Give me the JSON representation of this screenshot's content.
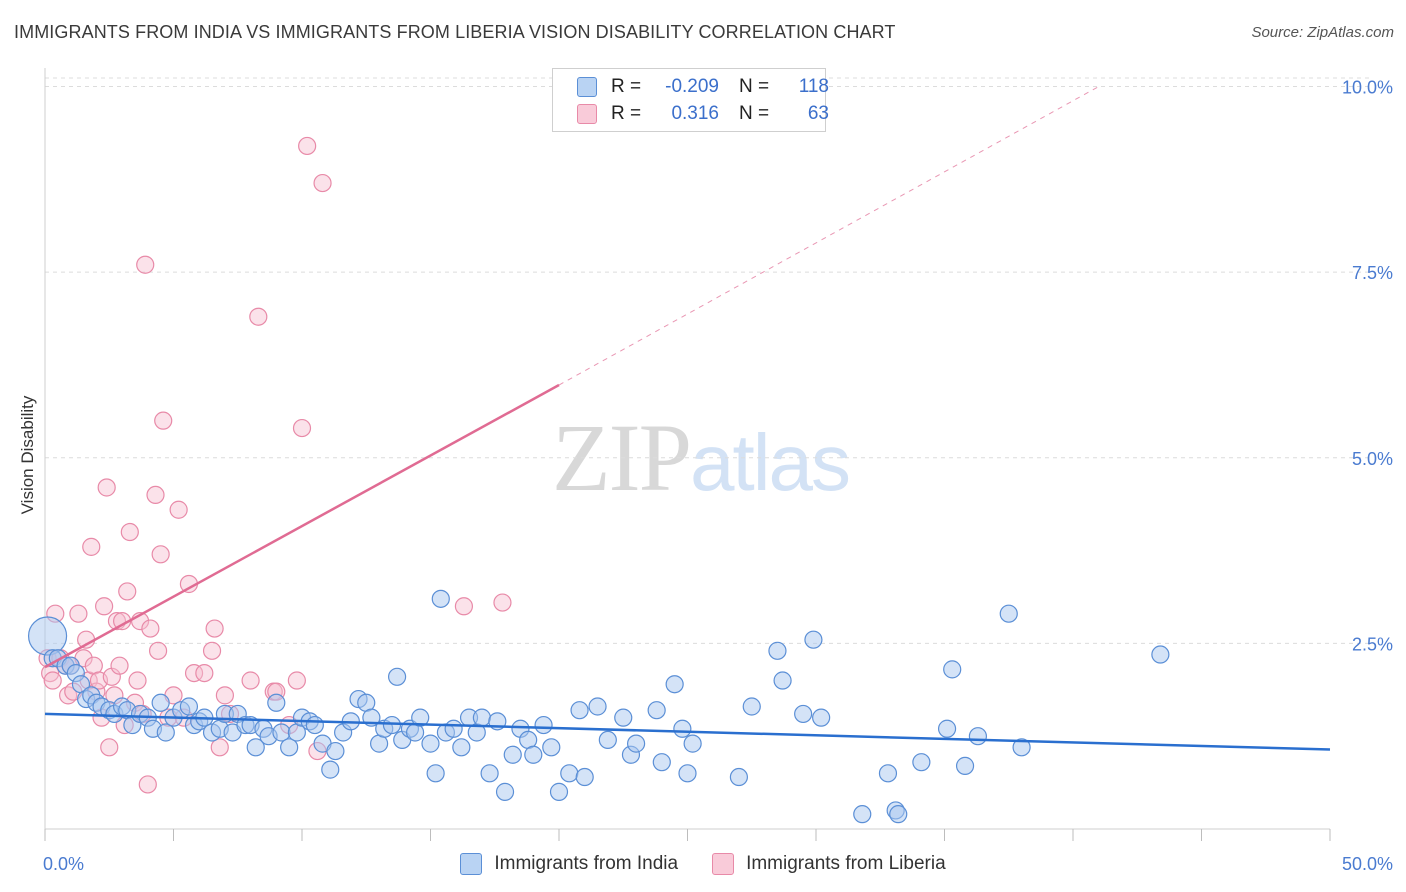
{
  "title": "IMMIGRANTS FROM INDIA VS IMMIGRANTS FROM LIBERIA VISION DISABILITY CORRELATION CHART",
  "source": "Source: ZipAtlas.com",
  "watermark": {
    "zip": "ZIP",
    "atlas": "atlas"
  },
  "legend": {
    "india": {
      "r_label": "R =",
      "r_value": "-0.209",
      "n_label": "N =",
      "n_value": "118"
    },
    "liberia": {
      "r_label": "R =",
      "r_value": "0.316",
      "n_label": "N =",
      "n_value": "63"
    }
  },
  "colors": {
    "india_fill": "#a9c8f0",
    "india_stroke": "#5b8fd6",
    "india_line": "#2a6fcf",
    "liberia_fill": "#f7bfd0",
    "liberia_stroke": "#e88aa8",
    "liberia_line": "#e06b93",
    "tick_label": "#4a7bd0",
    "grid": "#dcdcdc"
  },
  "chart_data": {
    "type": "scatter",
    "title": "IMMIGRANTS FROM INDIA VS IMMIGRANTS FROM LIBERIA VISION DISABILITY CORRELATION CHART",
    "xlabel": "",
    "ylabel": "Vision Disability",
    "xlim": [
      0,
      50
    ],
    "ylim": [
      0,
      10.25
    ],
    "x_tick_labels": [
      "0.0%",
      "50.0%"
    ],
    "y_ticks": [
      2.5,
      5.0,
      7.5,
      10.0
    ],
    "y_tick_labels": [
      "2.5%",
      "5.0%",
      "7.5%",
      "10.0%"
    ],
    "grid": true,
    "legend_position": "top-center",
    "series": [
      {
        "name": "Immigrants from India",
        "trend": {
          "x0": 0,
          "y0": 1.55,
          "x1": 50,
          "y1": 1.07
        },
        "points": [
          [
            0.1,
            2.6
          ],
          [
            0.3,
            2.3
          ],
          [
            0.5,
            2.3
          ],
          [
            0.8,
            2.2
          ],
          [
            1.0,
            2.2
          ],
          [
            1.2,
            2.1
          ],
          [
            1.4,
            1.95
          ],
          [
            1.6,
            1.75
          ],
          [
            1.8,
            1.8
          ],
          [
            2.0,
            1.7
          ],
          [
            2.2,
            1.65
          ],
          [
            2.5,
            1.6
          ],
          [
            2.7,
            1.55
          ],
          [
            3.0,
            1.65
          ],
          [
            3.2,
            1.6
          ],
          [
            3.4,
            1.4
          ],
          [
            3.7,
            1.55
          ],
          [
            4.0,
            1.5
          ],
          [
            4.2,
            1.35
          ],
          [
            4.5,
            1.7
          ],
          [
            4.7,
            1.3
          ],
          [
            5.0,
            1.5
          ],
          [
            5.3,
            1.6
          ],
          [
            5.6,
            1.65
          ],
          [
            5.8,
            1.4
          ],
          [
            6.0,
            1.45
          ],
          [
            6.2,
            1.5
          ],
          [
            6.5,
            1.3
          ],
          [
            6.8,
            1.35
          ],
          [
            7.0,
            1.55
          ],
          [
            7.3,
            1.3
          ],
          [
            7.5,
            1.55
          ],
          [
            7.8,
            1.4
          ],
          [
            8.0,
            1.4
          ],
          [
            8.2,
            1.1
          ],
          [
            8.5,
            1.35
          ],
          [
            8.7,
            1.25
          ],
          [
            9.0,
            1.7
          ],
          [
            9.2,
            1.3
          ],
          [
            9.5,
            1.1
          ],
          [
            9.8,
            1.3
          ],
          [
            10.0,
            1.5
          ],
          [
            10.3,
            1.45
          ],
          [
            10.5,
            1.4
          ],
          [
            10.8,
            1.15
          ],
          [
            11.1,
            0.8
          ],
          [
            11.3,
            1.05
          ],
          [
            11.6,
            1.3
          ],
          [
            11.9,
            1.45
          ],
          [
            12.2,
            1.75
          ],
          [
            12.5,
            1.7
          ],
          [
            12.7,
            1.5
          ],
          [
            13.0,
            1.15
          ],
          [
            13.2,
            1.35
          ],
          [
            13.5,
            1.4
          ],
          [
            13.7,
            2.05
          ],
          [
            13.9,
            1.2
          ],
          [
            14.2,
            1.35
          ],
          [
            14.4,
            1.3
          ],
          [
            14.6,
            1.5
          ],
          [
            15.0,
            1.15
          ],
          [
            15.2,
            0.75
          ],
          [
            15.4,
            3.1
          ],
          [
            15.6,
            1.3
          ],
          [
            15.9,
            1.35
          ],
          [
            16.2,
            1.1
          ],
          [
            16.5,
            1.5
          ],
          [
            16.8,
            1.3
          ],
          [
            17.0,
            1.5
          ],
          [
            17.3,
            0.75
          ],
          [
            17.6,
            1.45
          ],
          [
            17.9,
            0.5
          ],
          [
            18.2,
            1.0
          ],
          [
            18.5,
            1.35
          ],
          [
            18.8,
            1.2
          ],
          [
            19.0,
            1.0
          ],
          [
            19.4,
            1.4
          ],
          [
            19.7,
            1.1
          ],
          [
            20.0,
            0.5
          ],
          [
            20.4,
            0.75
          ],
          [
            20.8,
            1.6
          ],
          [
            21.0,
            0.7
          ],
          [
            21.5,
            1.65
          ],
          [
            21.9,
            1.2
          ],
          [
            22.5,
            1.5
          ],
          [
            22.8,
            1.0
          ],
          [
            23.0,
            1.15
          ],
          [
            23.8,
            1.6
          ],
          [
            24.0,
            0.9
          ],
          [
            24.5,
            1.95
          ],
          [
            24.8,
            1.35
          ],
          [
            25.0,
            0.75
          ],
          [
            25.2,
            1.15
          ],
          [
            27.0,
            0.7
          ],
          [
            27.5,
            1.65
          ],
          [
            28.5,
            2.4
          ],
          [
            28.7,
            2.0
          ],
          [
            29.5,
            1.55
          ],
          [
            29.9,
            2.55
          ],
          [
            30.2,
            1.5
          ],
          [
            31.8,
            0.2
          ],
          [
            32.8,
            0.75
          ],
          [
            33.1,
            0.25
          ],
          [
            33.2,
            0.2
          ],
          [
            34.1,
            0.9
          ],
          [
            35.1,
            1.35
          ],
          [
            35.3,
            2.15
          ],
          [
            35.8,
            0.85
          ],
          [
            36.3,
            1.25
          ],
          [
            37.5,
            2.9
          ],
          [
            38.0,
            1.1
          ],
          [
            43.4,
            2.35
          ]
        ]
      },
      {
        "name": "Immigrants from Liberia",
        "trend": {
          "x0": 0,
          "y0": 2.18,
          "x1": 20.0,
          "y1": 5.98,
          "dash_to": {
            "x": 41.0,
            "y": 10.0
          }
        },
        "points": [
          [
            0.1,
            2.3
          ],
          [
            0.2,
            2.1
          ],
          [
            0.3,
            2.0
          ],
          [
            0.4,
            2.9
          ],
          [
            0.6,
            2.3
          ],
          [
            0.8,
            2.2
          ],
          [
            0.9,
            1.8
          ],
          [
            1.0,
            2.2
          ],
          [
            1.1,
            1.85
          ],
          [
            1.3,
            2.9
          ],
          [
            1.5,
            2.3
          ],
          [
            1.6,
            2.55
          ],
          [
            1.7,
            2.0
          ],
          [
            1.8,
            3.8
          ],
          [
            1.9,
            2.2
          ],
          [
            2.0,
            1.85
          ],
          [
            2.1,
            2.0
          ],
          [
            2.2,
            1.5
          ],
          [
            2.3,
            3.0
          ],
          [
            2.4,
            4.6
          ],
          [
            2.5,
            1.1
          ],
          [
            2.6,
            2.05
          ],
          [
            2.7,
            1.8
          ],
          [
            2.8,
            2.8
          ],
          [
            2.9,
            2.2
          ],
          [
            3.0,
            2.8
          ],
          [
            3.1,
            1.4
          ],
          [
            3.2,
            3.2
          ],
          [
            3.3,
            4.0
          ],
          [
            3.5,
            1.7
          ],
          [
            3.6,
            2.0
          ],
          [
            3.7,
            2.8
          ],
          [
            3.8,
            1.55
          ],
          [
            3.9,
            7.6
          ],
          [
            4.0,
            0.6
          ],
          [
            4.1,
            2.7
          ],
          [
            4.3,
            4.5
          ],
          [
            4.4,
            2.4
          ],
          [
            4.5,
            3.7
          ],
          [
            4.6,
            5.5
          ],
          [
            4.8,
            1.5
          ],
          [
            5.0,
            1.8
          ],
          [
            5.2,
            4.3
          ],
          [
            5.4,
            1.5
          ],
          [
            5.6,
            3.3
          ],
          [
            5.8,
            2.1
          ],
          [
            6.2,
            2.1
          ],
          [
            6.5,
            2.4
          ],
          [
            6.6,
            2.7
          ],
          [
            6.8,
            1.1
          ],
          [
            7.0,
            1.8
          ],
          [
            7.2,
            1.55
          ],
          [
            8.0,
            2.0
          ],
          [
            8.3,
            6.9
          ],
          [
            8.9,
            1.85
          ],
          [
            9.0,
            1.85
          ],
          [
            9.5,
            1.4
          ],
          [
            9.8,
            2.0
          ],
          [
            10.0,
            5.4
          ],
          [
            10.2,
            9.2
          ],
          [
            10.6,
            1.05
          ],
          [
            10.8,
            8.7
          ],
          [
            16.3,
            3.0
          ],
          [
            17.8,
            3.05
          ]
        ]
      }
    ]
  }
}
